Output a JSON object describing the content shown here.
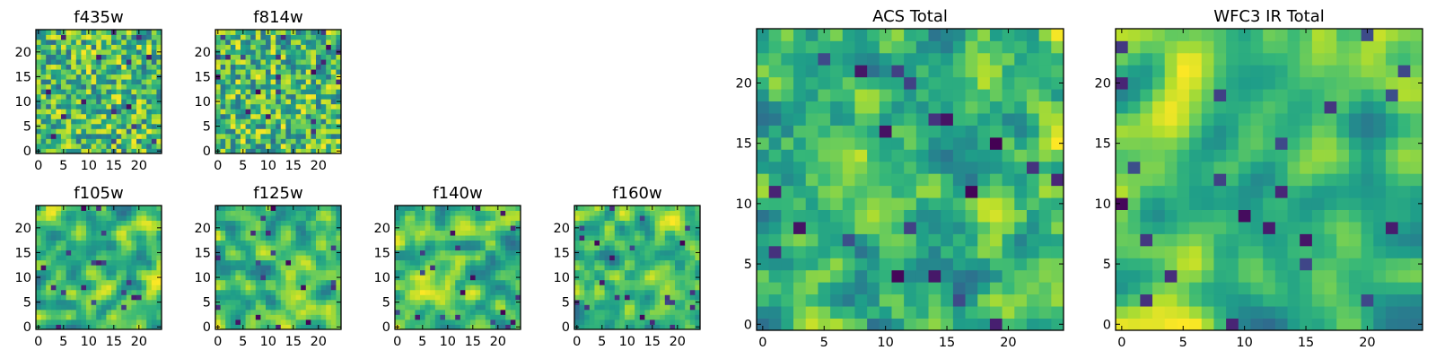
{
  "chart_data": [
    {
      "id": "f435w",
      "type": "heatmap",
      "title": "f435w",
      "grid_size": 25,
      "colormap": "viridis",
      "seed": 435,
      "texture": "noise",
      "smooth": 0,
      "xticks": [
        "0",
        "5",
        "10",
        "15",
        "20"
      ],
      "yticks": [
        "0",
        "5",
        "10",
        "15",
        "20"
      ],
      "xlim": [
        -0.5,
        24.5
      ],
      "ylim": [
        -0.5,
        24.5
      ]
    },
    {
      "id": "f814w",
      "type": "heatmap",
      "title": "f814w",
      "grid_size": 25,
      "colormap": "viridis",
      "seed": 814,
      "texture": "noise",
      "smooth": 0,
      "xticks": [
        "0",
        "5",
        "10",
        "15",
        "20"
      ],
      "yticks": [
        "0",
        "5",
        "10",
        "15",
        "20"
      ],
      "xlim": [
        -0.5,
        24.5
      ],
      "ylim": [
        -0.5,
        24.5
      ]
    },
    {
      "id": "f105w",
      "type": "heatmap",
      "title": "f105w",
      "grid_size": 25,
      "colormap": "viridis",
      "seed": 105,
      "texture": "blocky",
      "smooth": 1,
      "xticks": [
        "0",
        "5",
        "10",
        "15",
        "20"
      ],
      "yticks": [
        "0",
        "5",
        "10",
        "15",
        "20"
      ],
      "xlim": [
        -0.5,
        24.5
      ],
      "ylim": [
        -0.5,
        24.5
      ]
    },
    {
      "id": "f125w",
      "type": "heatmap",
      "title": "f125w",
      "grid_size": 25,
      "colormap": "viridis",
      "seed": 125,
      "texture": "blocky",
      "smooth": 1,
      "xticks": [
        "0",
        "5",
        "10",
        "15",
        "20"
      ],
      "yticks": [
        "0",
        "5",
        "10",
        "15",
        "20"
      ],
      "xlim": [
        -0.5,
        24.5
      ],
      "ylim": [
        -0.5,
        24.5
      ]
    },
    {
      "id": "f140w",
      "type": "heatmap",
      "title": "f140w",
      "grid_size": 25,
      "colormap": "viridis",
      "seed": 140,
      "texture": "blocky",
      "smooth": 1,
      "xticks": [
        "0",
        "5",
        "10",
        "15",
        "20"
      ],
      "yticks": [
        "0",
        "5",
        "10",
        "15",
        "20"
      ],
      "xlim": [
        -0.5,
        24.5
      ],
      "ylim": [
        -0.5,
        24.5
      ]
    },
    {
      "id": "f160w",
      "type": "heatmap",
      "title": "f160w",
      "grid_size": 25,
      "colormap": "viridis",
      "seed": 160,
      "texture": "blocky",
      "smooth": 1,
      "xticks": [
        "0",
        "5",
        "10",
        "15",
        "20"
      ],
      "yticks": [
        "0",
        "5",
        "10",
        "15",
        "20"
      ],
      "xlim": [
        -0.5,
        24.5
      ],
      "ylim": [
        -0.5,
        24.5
      ]
    },
    {
      "id": "acs-total",
      "type": "heatmap",
      "title": "ACS Total",
      "grid_size": 25,
      "colormap": "viridis",
      "seed": 999,
      "texture": "noise",
      "smooth": 1,
      "xticks": [
        "0",
        "5",
        "10",
        "15",
        "20"
      ],
      "yticks": [
        "0",
        "5",
        "10",
        "15",
        "20"
      ],
      "xlim": [
        -0.5,
        24.5
      ],
      "ylim": [
        -0.5,
        24.5
      ]
    },
    {
      "id": "wfc3-ir-total",
      "type": "heatmap",
      "title": "WFC3 IR Total",
      "grid_size": 25,
      "colormap": "viridis",
      "seed": 777,
      "texture": "blocky",
      "smooth": 2,
      "xticks": [
        "0",
        "5",
        "10",
        "15",
        "20"
      ],
      "yticks": [
        "0",
        "5",
        "10",
        "15",
        "20"
      ],
      "xlim": [
        -0.5,
        24.5
      ],
      "ylim": [
        -0.5,
        24.5
      ]
    }
  ]
}
